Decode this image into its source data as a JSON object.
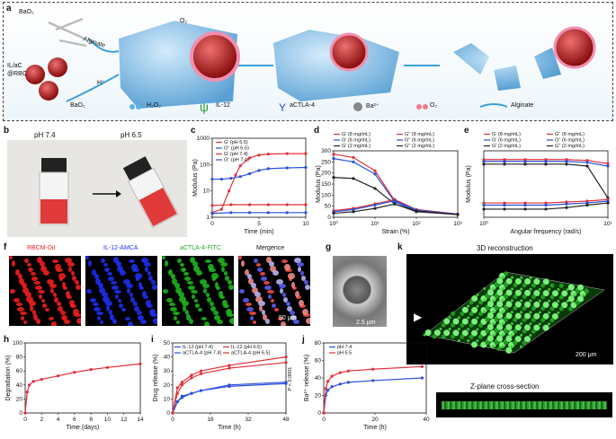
{
  "panel_labels": {
    "a": "a",
    "b": "b",
    "c": "c",
    "d": "d",
    "e": "e",
    "f": "f",
    "g": "g",
    "h": "h",
    "i": "i",
    "j": "j",
    "k": "k"
  },
  "schematic": {
    "bao2_top": "BaO₂",
    "alginate_arrow": "Alginate",
    "il_ac_1": "IL/aC",
    "il_ac_2": "@RBC",
    "h_plus": "H⁺",
    "o2_up": "O₂",
    "legend": {
      "bao2": "BaO₂",
      "h2o2": "H₂O₂",
      "il12": "IL-12",
      "actla4": "aCTLA-4",
      "ba2": "Ba²⁺",
      "o2": "O₂",
      "alginate": "Alginate"
    },
    "colors": {
      "gel": "#5aa7d8",
      "cell": "#c0392b",
      "red": "#e0303a",
      "blue": "#2a4fd8"
    }
  },
  "panel_b": {
    "ph_left": "pH 7.4",
    "ph_right": "pH 6.5"
  },
  "panel_f": {
    "titles": [
      "RBCM-DiI",
      "IL-12-AMCA",
      "aCTLA-4-FITC",
      "Mergence"
    ],
    "scale": "50 μm",
    "colors": [
      "#ee1c1c",
      "#2233ee",
      "#22aa22",
      "#111111"
    ]
  },
  "panel_g": {
    "scale": "2.5 μm"
  },
  "panel_k": {
    "title": "3D reconstruction",
    "scale": "200 μm",
    "zplane": "Z-plane cross-section"
  },
  "chart_data": [
    {
      "id": "c",
      "type": "line",
      "xlabel": "Time (min)",
      "ylabel": "Modulus (Pa)",
      "xticks": [
        "0",
        "5",
        "10"
      ],
      "yticks": [
        "1",
        "10",
        "100",
        "1000"
      ],
      "yscale": "log",
      "legend": [
        "G' (pH 6.5)",
        "G'' (pH 6.5)",
        "G' (pH 7.4)",
        "G'' (pH 7.4)"
      ],
      "series": [
        {
          "name": "G' (pH 6.5)",
          "color": "#e0303a",
          "x": [
            0,
            1,
            1.8,
            2.5,
            3,
            4,
            5,
            6,
            8,
            10
          ],
          "y": [
            1.5,
            2,
            10,
            40,
            90,
            180,
            230,
            250,
            260,
            260
          ]
        },
        {
          "name": "G'' (pH 6.5)",
          "color": "#2a4fd8",
          "x": [
            0,
            1,
            2,
            3,
            4,
            5,
            6,
            8,
            10
          ],
          "y": [
            28,
            28,
            30,
            35,
            45,
            60,
            70,
            75,
            78
          ]
        },
        {
          "name": "G' (pH 7.4)",
          "color": "#e0303a",
          "x": [
            0,
            2,
            4,
            6,
            8,
            10
          ],
          "y": [
            2.8,
            3,
            3,
            3,
            3,
            3
          ]
        },
        {
          "name": "G'' (pH 7.4)",
          "color": "#2a4fd8",
          "x": [
            0,
            2,
            4,
            6,
            8,
            10
          ],
          "y": [
            1.4,
            1.5,
            1.5,
            1.5,
            1.5,
            1.5
          ]
        }
      ]
    },
    {
      "id": "d",
      "type": "line",
      "xlabel": "Strain (%)",
      "ylabel": "Modulus (Pa)",
      "xticks": [
        "10⁰",
        "10¹",
        "10²",
        "10³"
      ],
      "yticks": [
        "0",
        "50",
        "100",
        "150",
        "200",
        "250",
        "300"
      ],
      "legend": [
        "G' (8 mg/mL)",
        "G'' (8 mg/mL)",
        "G' (6 mg/mL)",
        "G'' (6 mg/mL)",
        "G' (2 mg/mL)",
        "G'' (2 mg/mL)"
      ],
      "series": [
        {
          "name": "G' (8 mg/mL)",
          "color": "#e0303a",
          "x": [
            1,
            3,
            10,
            30,
            100,
            1000
          ],
          "y": [
            285,
            270,
            210,
            75,
            30,
            15
          ]
        },
        {
          "name": "G' (6 mg/mL)",
          "color": "#2a4fd8",
          "x": [
            1,
            3,
            10,
            30,
            100,
            1000
          ],
          "y": [
            265,
            250,
            195,
            70,
            28,
            14
          ]
        },
        {
          "name": "G' (2 mg/mL)",
          "color": "#222222",
          "x": [
            1,
            3,
            10,
            30,
            100,
            1000
          ],
          "y": [
            180,
            175,
            130,
            60,
            25,
            12
          ]
        },
        {
          "name": "G'' (8 mg/mL)",
          "color": "#e0303a",
          "x": [
            1,
            3,
            10,
            30,
            100,
            1000
          ],
          "y": [
            30,
            40,
            60,
            80,
            35,
            15
          ]
        },
        {
          "name": "G'' (6 mg/mL)",
          "color": "#2a4fd8",
          "x": [
            1,
            3,
            10,
            30,
            100,
            1000
          ],
          "y": [
            25,
            35,
            55,
            75,
            32,
            14
          ]
        },
        {
          "name": "G'' (2 mg/mL)",
          "color": "#222222",
          "x": [
            1,
            3,
            10,
            30,
            100,
            1000
          ],
          "y": [
            18,
            25,
            40,
            60,
            28,
            12
          ]
        }
      ]
    },
    {
      "id": "e",
      "type": "line",
      "xlabel": "Angular frequency (rad/s)",
      "ylabel": "Modulus (Pa)",
      "xticks": [
        "10⁰",
        "10¹"
      ],
      "yscale": "log",
      "legend": [
        "G' (8 mg/mL)",
        "G'' (8 mg/mL)",
        "G' (6 mg/mL)",
        "G'' (6 mg/mL)",
        "G' (2 mg/mL)",
        "G'' (2 mg/mL)"
      ],
      "series": [
        {
          "name": "G' (8 mg/mL)",
          "color": "#e0303a",
          "values": [
            320,
            320,
            320,
            320,
            320,
            300,
            240
          ]
        },
        {
          "name": "G' (6 mg/mL)",
          "color": "#2a4fd8",
          "values": [
            280,
            280,
            280,
            280,
            280,
            260,
            200
          ]
        },
        {
          "name": "G' (2 mg/mL)",
          "color": "#222222",
          "values": [
            230,
            230,
            230,
            230,
            230,
            200,
            20
          ]
        },
        {
          "name": "G'' (8 mg/mL)",
          "color": "#e0303a",
          "values": [
            14,
            14,
            14,
            14,
            15,
            16,
            18
          ]
        },
        {
          "name": "G'' (6 mg/mL)",
          "color": "#2a4fd8",
          "values": [
            12,
            12,
            12,
            12,
            13,
            14,
            16
          ]
        },
        {
          "name": "G'' (2 mg/mL)",
          "color": "#222222",
          "values": [
            9,
            9,
            9,
            9,
            10,
            12,
            14
          ]
        }
      ]
    },
    {
      "id": "h",
      "type": "line",
      "xlabel": "Time (days)",
      "ylabel": "Degradation (%)",
      "xticks": [
        "0",
        "2",
        "4",
        "6",
        "8",
        "10",
        "12",
        "14"
      ],
      "yticks": [
        "0",
        "20",
        "40",
        "60",
        "80",
        "100"
      ],
      "series": [
        {
          "name": "",
          "color": "#e0303a",
          "x": [
            0,
            0.25,
            0.5,
            1,
            2,
            4,
            6,
            8,
            10,
            14
          ],
          "y": [
            0,
            30,
            40,
            45,
            48,
            53,
            58,
            62,
            65,
            70
          ]
        }
      ]
    },
    {
      "id": "i",
      "type": "line",
      "xlabel": "Time (h)",
      "ylabel": "Drug release (%)",
      "xticks": [
        "0",
        "16",
        "32",
        "48"
      ],
      "yticks": [
        "0",
        "10",
        "20",
        "30",
        "40",
        "50"
      ],
      "legend": [
        "IL-12 (pH 7.4)",
        "IL-12 (pH 6.5)",
        "aCTLA-4 (pH 7.4)",
        "aCTLA-4 (pH 6.5)"
      ],
      "annotation": "P < 0.0001",
      "series": [
        {
          "name": "IL-12 (pH 7.4)",
          "color": "#2a4fd8",
          "x": [
            0,
            2,
            4,
            8,
            12,
            24,
            48
          ],
          "y": [
            0,
            8,
            12,
            14,
            16,
            20,
            22
          ]
        },
        {
          "name": "IL-12 (pH 6.5)",
          "color": "#e0303a",
          "x": [
            0,
            2,
            4,
            8,
            12,
            24,
            48
          ],
          "y": [
            0,
            14,
            20,
            25,
            28,
            32,
            36
          ]
        },
        {
          "name": "aCTLA-4 (pH 7.4)",
          "color": "#2a4fd8",
          "x": [
            0,
            2,
            4,
            8,
            12,
            24,
            48
          ],
          "y": [
            0,
            8,
            11,
            14,
            16,
            19,
            21
          ]
        },
        {
          "name": "aCTLA-4 (pH 6.5)",
          "color": "#e0303a",
          "x": [
            0,
            2,
            4,
            8,
            12,
            24,
            48
          ],
          "y": [
            0,
            18,
            22,
            27,
            30,
            34,
            40
          ]
        }
      ]
    },
    {
      "id": "j",
      "type": "line",
      "xlabel": "Time (h)",
      "ylabel": "Ba²⁺ release (%)",
      "xticks": [
        "0",
        "20",
        "40"
      ],
      "yticks": [
        "0",
        "20",
        "40",
        "60",
        "80"
      ],
      "legend": [
        "pH 7.4",
        "pH 6.5"
      ],
      "series": [
        {
          "name": "pH 7.4",
          "color": "#2a4fd8",
          "x": [
            0,
            1,
            2,
            4,
            8,
            12,
            24,
            48
          ],
          "y": [
            0,
            20,
            26,
            30,
            33,
            35,
            37,
            40
          ]
        },
        {
          "name": "pH 6.5",
          "color": "#e0303a",
          "x": [
            0,
            1,
            2,
            4,
            8,
            12,
            24,
            48
          ],
          "y": [
            0,
            28,
            36,
            42,
            46,
            48,
            50,
            53
          ]
        }
      ]
    }
  ]
}
